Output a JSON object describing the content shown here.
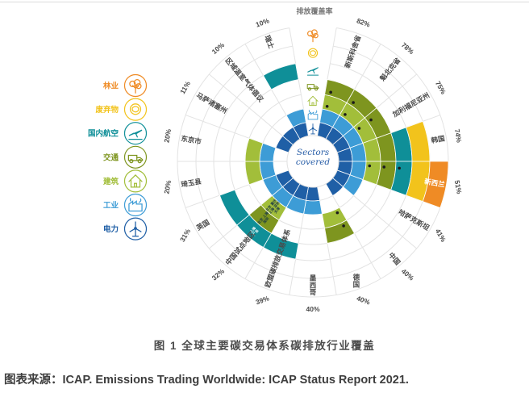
{
  "page": {
    "caption": "图 1  全球主要碳交易体系碳排放行业覆盖",
    "source": "图表来源：ICAP. Emissions Trading Worldwide: ICAP Status Report 2021."
  },
  "chart_data": {
    "type": "radial-coverage-matrix",
    "title": "排放覆盖率",
    "center_label": "Sectors covered",
    "grid_color": "#e3e3e3",
    "label_color": "#4a4a4a",
    "rings_inner_to_outer": [
      {
        "id": "power",
        "label": "电力",
        "color": "#1F5FA6"
      },
      {
        "id": "industry",
        "label": "工业",
        "color": "#3D9CD6"
      },
      {
        "id": "buildings",
        "label": "建筑",
        "color": "#A2BE3A"
      },
      {
        "id": "transport",
        "label": "交通",
        "color": "#7E951F"
      },
      {
        "id": "aviation",
        "label": "国内航空",
        "color": "#0F8F98"
      },
      {
        "id": "waste",
        "label": "废弃物",
        "color": "#F2C31C"
      },
      {
        "id": "forestry",
        "label": "林业",
        "color": "#EF8B25"
      }
    ],
    "legend_top_to_bottom": [
      {
        "label": "林业",
        "ring": "forestry"
      },
      {
        "label": "废弃物",
        "ring": "waste"
      },
      {
        "label": "国内航空",
        "ring": "aviation"
      },
      {
        "label": "交通",
        "ring": "transport"
      },
      {
        "label": "建筑",
        "ring": "buildings"
      },
      {
        "label": "工业",
        "ring": "industry"
      },
      {
        "label": "电力",
        "ring": "power"
      }
    ],
    "jurisdictions_clockwise_from_top": [
      {
        "name": "新斯科舍省",
        "coverage": "82%",
        "sectors": [
          {
            "ring": "power",
            "mode": "full"
          },
          {
            "ring": "industry",
            "mode": "full"
          },
          {
            "ring": "buildings",
            "mode": "dot"
          },
          {
            "ring": "transport",
            "mode": "dot"
          }
        ]
      },
      {
        "name": "魁北克省",
        "coverage": "78%",
        "sectors": [
          {
            "ring": "power",
            "mode": "full"
          },
          {
            "ring": "industry",
            "mode": "full"
          },
          {
            "ring": "buildings",
            "mode": "dot"
          },
          {
            "ring": "transport",
            "mode": "dot"
          }
        ]
      },
      {
        "name": "加利福尼亚州",
        "coverage": "75%",
        "sectors": [
          {
            "ring": "power",
            "mode": "full"
          },
          {
            "ring": "industry",
            "mode": "full"
          },
          {
            "ring": "buildings",
            "mode": "dot"
          },
          {
            "ring": "transport",
            "mode": "dot"
          }
        ]
      },
      {
        "name": "韩国",
        "coverage": "74%",
        "sectors": [
          {
            "ring": "power",
            "mode": "full"
          },
          {
            "ring": "industry",
            "mode": "full"
          },
          {
            "ring": "buildings",
            "mode": "full"
          },
          {
            "ring": "transport",
            "mode": "full"
          },
          {
            "ring": "aviation",
            "mode": "full"
          },
          {
            "ring": "waste",
            "mode": "full"
          }
        ]
      },
      {
        "name": "新西兰",
        "coverage": "51%",
        "name_color": "#ffffff",
        "sectors": [
          {
            "ring": "power",
            "mode": "full"
          },
          {
            "ring": "industry",
            "mode": "full"
          },
          {
            "ring": "buildings",
            "mode": "dot"
          },
          {
            "ring": "transport",
            "mode": "dot"
          },
          {
            "ring": "aviation",
            "mode": "dot"
          },
          {
            "ring": "waste",
            "mode": "full"
          },
          {
            "ring": "forestry",
            "mode": "full"
          }
        ]
      },
      {
        "name": "哈萨克斯坦",
        "coverage": "41%",
        "sectors": [
          {
            "ring": "power",
            "mode": "full"
          },
          {
            "ring": "industry",
            "mode": "full"
          }
        ]
      },
      {
        "name": "中国",
        "coverage": "40%",
        "sectors": [
          {
            "ring": "power",
            "mode": "full"
          }
        ]
      },
      {
        "name": "德国",
        "coverage": "40%",
        "sectors": [
          {
            "ring": "buildings",
            "mode": "dot"
          },
          {
            "ring": "transport",
            "mode": "dot"
          }
        ]
      },
      {
        "name": "墨西哥",
        "coverage": "40%",
        "sectors": [
          {
            "ring": "power",
            "mode": "full"
          },
          {
            "ring": "industry",
            "mode": "full"
          }
        ]
      },
      {
        "name": "欧盟碳排放交易体系",
        "coverage": "39%",
        "sectors": [
          {
            "ring": "power",
            "mode": "full"
          },
          {
            "ring": "industry",
            "mode": "full"
          },
          {
            "ring": "aviation",
            "mode": "full"
          }
        ]
      },
      {
        "name": "中国试点地区",
        "coverage": "32%",
        "sectors": [
          {
            "ring": "power",
            "mode": "full"
          },
          {
            "ring": "industry",
            "mode": "full"
          },
          {
            "ring": "buildings",
            "mode": "text",
            "lines": [
              "北京 重庆",
              "上海 深圳",
              "天津"
            ]
          },
          {
            "ring": "transport",
            "mode": "text",
            "lines": [
              "北京 上海",
              "深圳"
            ]
          },
          {
            "ring": "aviation",
            "mode": "text",
            "lines": [
              "上海",
              "广东"
            ]
          }
        ]
      },
      {
        "name": "英国",
        "coverage": "31%",
        "sectors": [
          {
            "ring": "power",
            "mode": "full"
          },
          {
            "ring": "industry",
            "mode": "full"
          },
          {
            "ring": "aviation",
            "mode": "full"
          }
        ]
      },
      {
        "name": "琦玉县",
        "coverage": "20%",
        "sectors": [
          {
            "ring": "industry",
            "mode": "full"
          },
          {
            "ring": "buildings",
            "mode": "full"
          }
        ]
      },
      {
        "name": "东京市",
        "coverage": "20%",
        "sectors": [
          {
            "ring": "industry",
            "mode": "full"
          },
          {
            "ring": "buildings",
            "mode": "full"
          }
        ]
      },
      {
        "name": "马萨诸塞州",
        "coverage": "11%",
        "sectors": [
          {
            "ring": "power",
            "mode": "full"
          }
        ]
      },
      {
        "name": "区域温室气体倡议",
        "coverage": "10%",
        "sectors": [
          {
            "ring": "power",
            "mode": "full"
          }
        ]
      },
      {
        "name": "瑞士",
        "coverage": "10%",
        "sectors": [
          {
            "ring": "power",
            "mode": "full"
          },
          {
            "ring": "industry",
            "mode": "full"
          },
          {
            "ring": "aviation",
            "mode": "full"
          }
        ]
      }
    ]
  }
}
